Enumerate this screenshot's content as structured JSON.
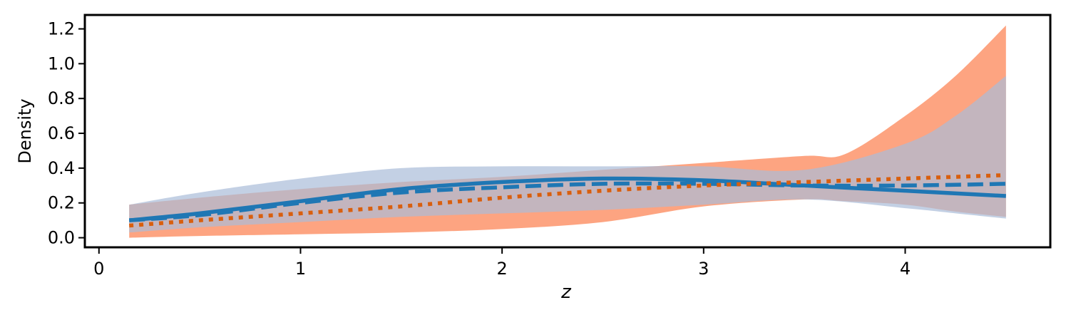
{
  "chart_data": {
    "type": "area",
    "xlabel": "z",
    "ylabel": "Density",
    "xlim": [
      -0.07,
      4.72
    ],
    "ylim": [
      -0.055,
      1.28
    ],
    "xticks": [
      0,
      1,
      2,
      3,
      4
    ],
    "xtick_labels": [
      "0",
      "1",
      "2",
      "3",
      "4"
    ],
    "yticks": [
      0.0,
      0.2,
      0.4,
      0.6,
      0.8,
      1.0,
      1.2
    ],
    "ytick_labels": [
      "0.0",
      "0.2",
      "0.4",
      "0.6",
      "0.8",
      "1.0",
      "1.2"
    ],
    "grid": false,
    "bands": [
      {
        "color": "#fc8d62",
        "opacity": 0.8,
        "x": [
          0.15,
          0.5,
          1.0,
          1.5,
          2.0,
          2.5,
          3.0,
          3.5,
          3.7,
          4.0,
          4.25,
          4.5
        ],
        "lower": [
          0.0,
          0.01,
          0.02,
          0.03,
          0.05,
          0.09,
          0.18,
          0.22,
          0.21,
          0.19,
          0.15,
          0.12
        ],
        "upper": [
          0.19,
          0.23,
          0.28,
          0.32,
          0.35,
          0.39,
          0.43,
          0.47,
          0.48,
          0.7,
          0.93,
          1.22
        ]
      },
      {
        "color": "#a9bcd9",
        "opacity": 0.7,
        "x": [
          0.15,
          0.5,
          1.0,
          1.5,
          2.0,
          2.5,
          3.0,
          3.5,
          4.0,
          4.25,
          4.5
        ],
        "lower": [
          0.03,
          0.06,
          0.09,
          0.12,
          0.14,
          0.16,
          0.19,
          0.22,
          0.17,
          0.14,
          0.11
        ],
        "upper": [
          0.19,
          0.26,
          0.34,
          0.4,
          0.41,
          0.41,
          0.41,
          0.39,
          0.54,
          0.7,
          0.93
        ]
      }
    ],
    "series": [
      {
        "style": "solid",
        "color": "#1f77b4",
        "x": [
          0.15,
          0.5,
          1.0,
          1.5,
          2.0,
          2.5,
          3.0,
          3.5,
          4.0,
          4.5
        ],
        "values": [
          0.1,
          0.14,
          0.21,
          0.28,
          0.32,
          0.34,
          0.33,
          0.3,
          0.27,
          0.24
        ]
      },
      {
        "style": "dashed",
        "color": "#1f77b4",
        "x": [
          0.15,
          0.5,
          1.0,
          1.5,
          2.0,
          2.5,
          3.0,
          3.5,
          4.0,
          4.5
        ],
        "values": [
          0.1,
          0.13,
          0.2,
          0.26,
          0.29,
          0.31,
          0.31,
          0.3,
          0.3,
          0.31
        ]
      },
      {
        "style": "dotted",
        "color": "#d95f0e",
        "x": [
          0.15,
          0.5,
          1.0,
          1.5,
          2.0,
          2.5,
          3.0,
          3.5,
          4.0,
          4.5
        ],
        "values": [
          0.07,
          0.1,
          0.14,
          0.18,
          0.23,
          0.27,
          0.3,
          0.32,
          0.34,
          0.36
        ]
      }
    ]
  }
}
